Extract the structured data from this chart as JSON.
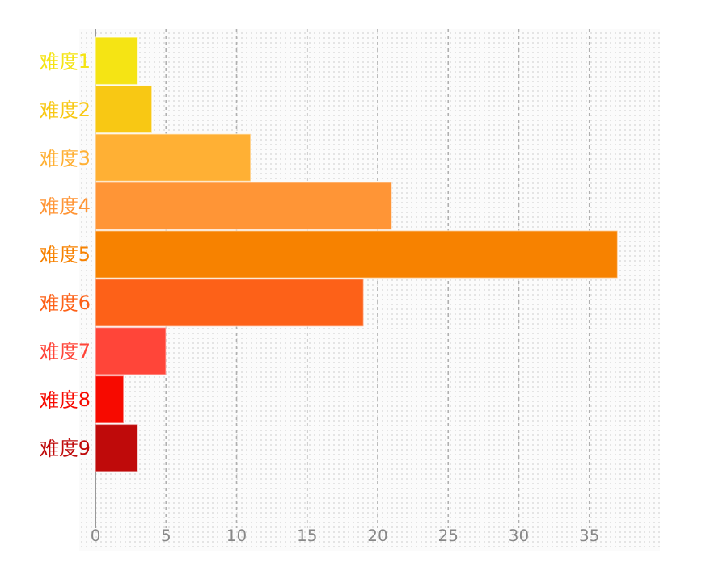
{
  "chart_data": {
    "type": "bar",
    "orientation": "horizontal",
    "categories": [
      "难度1",
      "难度2",
      "难度3",
      "难度4",
      "难度5",
      "难度6",
      "难度7",
      "难度8",
      "难度9"
    ],
    "values": [
      3,
      4,
      11,
      21,
      37,
      19,
      5,
      2,
      3
    ],
    "colors": [
      "#f5e414",
      "#f8c814",
      "#ffb034",
      "#ff9536",
      "#f78200",
      "#fd6118",
      "#ff4539",
      "#f70a00",
      "#bf0a0a"
    ],
    "xlim": [
      0,
      40
    ],
    "xticks": [
      0,
      5,
      10,
      15,
      20,
      25,
      30,
      35
    ],
    "grid": "x"
  }
}
